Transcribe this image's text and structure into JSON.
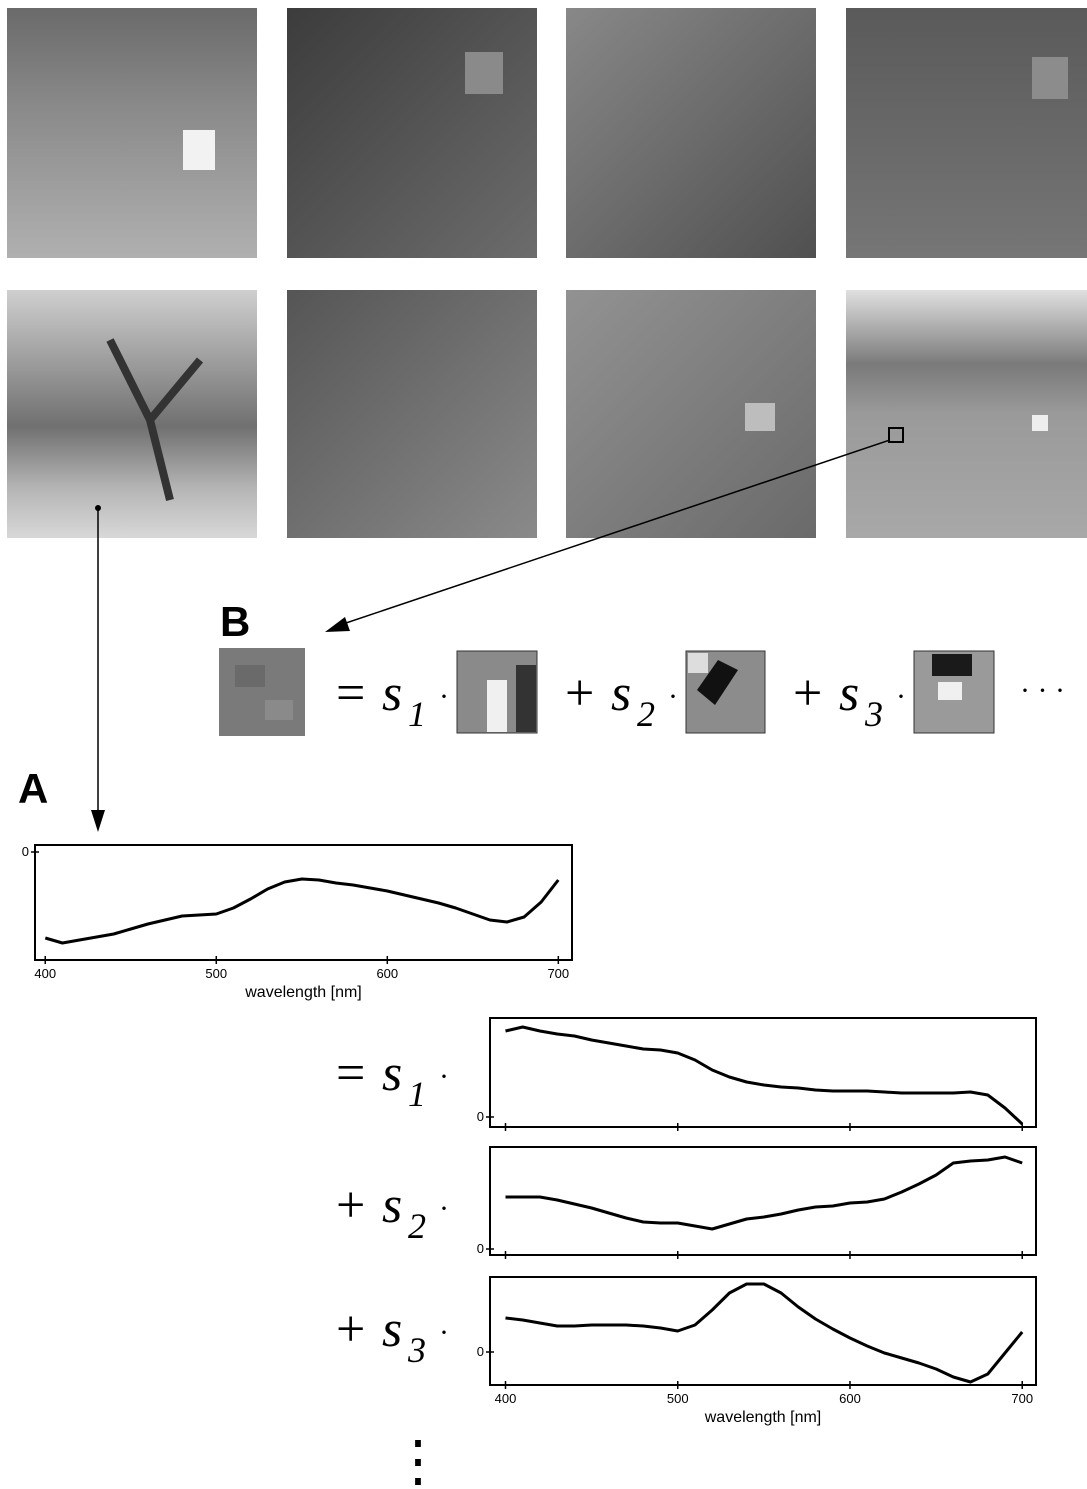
{
  "labels": {
    "a": "A",
    "b": "B"
  },
  "patch_equation": {
    "terms": [
      {
        "op": "=",
        "var": "s",
        "sub": "1",
        "dot": "·"
      },
      {
        "op": "+",
        "var": "s",
        "sub": "2",
        "dot": "·"
      },
      {
        "op": "+",
        "var": "s",
        "sub": "3",
        "dot": "·"
      }
    ],
    "ellipsis": "· · ·"
  },
  "spectrum_equation": {
    "terms": [
      {
        "op": "=",
        "var": "s",
        "sub": "1",
        "dot": "·"
      },
      {
        "op": "+",
        "var": "s",
        "sub": "2",
        "dot": "·"
      },
      {
        "op": "+",
        "var": "s",
        "sub": "3",
        "dot": "·"
      }
    ],
    "ellipsis": "⋮"
  },
  "chart_data": [
    {
      "type": "line",
      "xlabel": "wavelength [nm]",
      "show_xtick_labels": true,
      "color": "#000000",
      "x": [
        400,
        410,
        420,
        430,
        440,
        450,
        460,
        470,
        480,
        490,
        500,
        510,
        520,
        530,
        540,
        550,
        560,
        570,
        580,
        590,
        600,
        610,
        620,
        630,
        640,
        650,
        660,
        670,
        680,
        690,
        700
      ],
      "values": [
        -0.86,
        -0.91,
        -0.88,
        -0.85,
        -0.82,
        -0.77,
        -0.72,
        -0.68,
        -0.64,
        -0.63,
        -0.62,
        -0.56,
        -0.47,
        -0.37,
        -0.3,
        -0.27,
        -0.28,
        -0.31,
        -0.33,
        -0.36,
        -0.39,
        -0.43,
        -0.47,
        -0.51,
        -0.56,
        -0.62,
        -0.68,
        -0.7,
        -0.65,
        -0.5,
        -0.28
      ],
      "xlim": [
        394,
        708
      ],
      "xticks": [
        400,
        500,
        600,
        700
      ],
      "ylim": [
        -1.08,
        0.07
      ],
      "yticks": [
        0
      ]
    },
    {
      "type": "line",
      "show_xtick_labels": false,
      "color": "#000000",
      "x": [
        400,
        410,
        420,
        430,
        440,
        450,
        460,
        470,
        480,
        490,
        500,
        510,
        520,
        530,
        540,
        550,
        560,
        570,
        580,
        590,
        600,
        610,
        620,
        630,
        640,
        650,
        660,
        670,
        680,
        690,
        700
      ],
      "values": [
        0.86,
        0.9,
        0.86,
        0.83,
        0.81,
        0.77,
        0.74,
        0.71,
        0.68,
        0.67,
        0.64,
        0.57,
        0.47,
        0.4,
        0.35,
        0.32,
        0.3,
        0.29,
        0.27,
        0.26,
        0.26,
        0.26,
        0.25,
        0.24,
        0.24,
        0.24,
        0.24,
        0.25,
        0.22,
        0.09,
        -0.07
      ],
      "xlim": [
        391,
        708
      ],
      "xticks": [
        400,
        500,
        600,
        700
      ],
      "ylim": [
        -0.1,
        0.99
      ],
      "yticks": [
        0
      ]
    },
    {
      "type": "line",
      "show_xtick_labels": false,
      "color": "#000000",
      "x": [
        400,
        410,
        420,
        430,
        440,
        450,
        460,
        470,
        480,
        490,
        500,
        510,
        520,
        530,
        540,
        550,
        560,
        570,
        580,
        590,
        600,
        610,
        620,
        630,
        640,
        650,
        660,
        670,
        680,
        690,
        700
      ],
      "values": [
        0.52,
        0.52,
        0.52,
        0.49,
        0.45,
        0.41,
        0.36,
        0.31,
        0.27,
        0.26,
        0.26,
        0.23,
        0.2,
        0.25,
        0.3,
        0.32,
        0.35,
        0.39,
        0.42,
        0.43,
        0.46,
        0.47,
        0.5,
        0.57,
        0.65,
        0.74,
        0.86,
        0.88,
        0.89,
        0.92,
        0.86
      ],
      "xlim": [
        391,
        708
      ],
      "xticks": [
        400,
        500,
        600,
        700
      ],
      "ylim": [
        -0.06,
        1.02
      ],
      "yticks": [
        0
      ]
    },
    {
      "type": "line",
      "xlabel": "wavelength [nm]",
      "show_xtick_labels": true,
      "color": "#000000",
      "x": [
        400,
        410,
        420,
        430,
        440,
        450,
        460,
        470,
        480,
        490,
        500,
        510,
        520,
        530,
        540,
        550,
        560,
        570,
        580,
        590,
        600,
        610,
        620,
        630,
        640,
        650,
        660,
        670,
        680,
        690,
        700
      ],
      "values": [
        0.34,
        0.32,
        0.29,
        0.26,
        0.26,
        0.27,
        0.27,
        0.27,
        0.26,
        0.24,
        0.21,
        0.27,
        0.42,
        0.59,
        0.68,
        0.68,
        0.59,
        0.45,
        0.33,
        0.23,
        0.14,
        0.06,
        -0.01,
        -0.06,
        -0.11,
        -0.17,
        -0.25,
        -0.3,
        -0.22,
        -0.01,
        0.2
      ],
      "xlim": [
        391,
        708
      ],
      "xticks": [
        400,
        500,
        600,
        700
      ],
      "ylim": [
        -0.33,
        0.75
      ],
      "yticks": [
        0
      ]
    }
  ]
}
